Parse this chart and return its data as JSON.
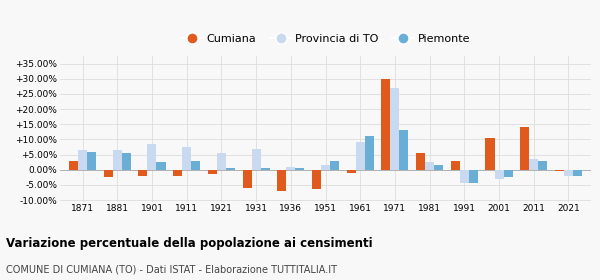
{
  "years": [
    1871,
    1881,
    1901,
    1911,
    1921,
    1931,
    1936,
    1951,
    1961,
    1971,
    1981,
    1991,
    2001,
    2011,
    2021
  ],
  "cumiana": [
    3.0,
    -2.5,
    -2.0,
    -2.0,
    -1.5,
    -6.0,
    -7.0,
    -6.5,
    -1.0,
    30.0,
    5.5,
    3.0,
    10.5,
    14.0,
    -0.5
  ],
  "provincia_to": [
    6.5,
    6.5,
    8.5,
    7.5,
    5.5,
    7.0,
    1.0,
    1.5,
    9.0,
    27.0,
    2.5,
    -4.5,
    -3.0,
    3.5,
    -2.0
  ],
  "piemonte": [
    6.0,
    5.5,
    2.5,
    3.0,
    0.5,
    0.5,
    0.5,
    3.0,
    11.0,
    13.0,
    1.5,
    -4.5,
    -2.5,
    3.0,
    -2.0
  ],
  "color_cumiana": "#e05a1e",
  "color_provincia": "#c8d9f0",
  "color_piemonte": "#6aaed6",
  "title": "Variazione percentuale della popolazione ai censimenti",
  "subtitle": "COMUNE DI CUMIANA (TO) - Dati ISTAT - Elaborazione TUTTITALIA.IT",
  "ylim": [
    -10.5,
    37.5
  ],
  "yticks": [
    -10,
    -5,
    0,
    5,
    10,
    15,
    20,
    25,
    30,
    35
  ],
  "background_color": "#f8f8f8",
  "grid_color": "#dddddd"
}
